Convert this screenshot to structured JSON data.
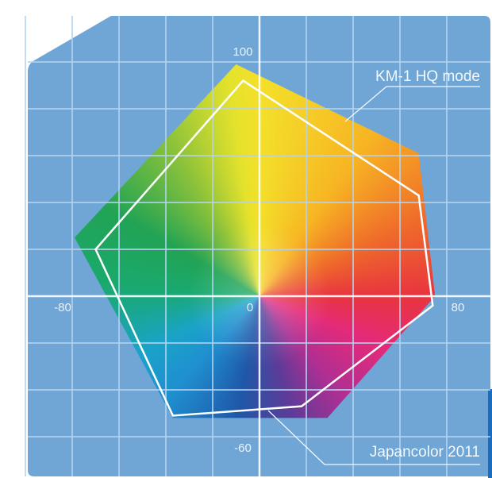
{
  "colors": {
    "panel": "#6fa6d6",
    "grid": "#b4d3ee",
    "axis": "#ffffff",
    "outline": "#ffffff",
    "edge_strip": "#1a6cc0"
  },
  "chart_data": {
    "type": "scatter",
    "subtype": "color-gamut-polygon",
    "xlim": [
      -100,
      98
    ],
    "ylim": [
      -77,
      120
    ],
    "grid": true,
    "grid_step": 20,
    "tick_labels": {
      "x": [
        {
          "value": -80,
          "label": "-80"
        },
        {
          "value": 0,
          "label": "0"
        },
        {
          "value": 80,
          "label": "80"
        }
      ],
      "y": [
        {
          "value": 100,
          "label": "100"
        },
        {
          "value": -60,
          "label": "-60"
        }
      ]
    },
    "series": [
      {
        "name": "KM-1 HQ mode",
        "style": "filled-color-gamut",
        "points": [
          [
            -10,
            99
          ],
          [
            68,
            61
          ],
          [
            75,
            0
          ],
          [
            29,
            -52
          ],
          [
            -37,
            -52
          ],
          [
            -79,
            25
          ]
        ]
      },
      {
        "name": "Japancolor 2011",
        "style": "white-outline",
        "points": [
          [
            -7,
            92
          ],
          [
            68,
            43
          ],
          [
            74,
            -4
          ],
          [
            18,
            -47
          ],
          [
            -37,
            -51
          ],
          [
            -70,
            20
          ]
        ]
      }
    ]
  }
}
